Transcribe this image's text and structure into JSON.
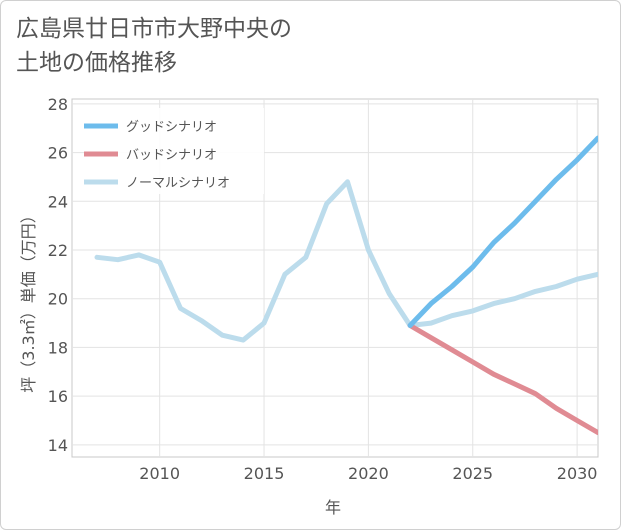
{
  "chart_data": {
    "type": "line",
    "title": [
      "広島県廿日市市大野中央の",
      "土地の価格推移"
    ],
    "xlabel": "年",
    "ylabel": "坪（3.3㎡）単価（万円）",
    "xlim": [
      2005.8,
      2031
    ],
    "ylim": [
      13.5,
      28.2
    ],
    "xticks": [
      2010,
      2015,
      2020,
      2025,
      2030
    ],
    "yticks": [
      14,
      16,
      18,
      20,
      22,
      24,
      26,
      28
    ],
    "legend_position": "top-left",
    "series": [
      {
        "name": "グッドシナリオ",
        "color": "#6dbcec",
        "x": [
          2022,
          2023,
          2024,
          2025,
          2026,
          2027,
          2028,
          2029,
          2030,
          2031
        ],
        "y": [
          18.9,
          19.8,
          20.5,
          21.3,
          22.3,
          23.1,
          24.0,
          24.9,
          25.7,
          26.6
        ]
      },
      {
        "name": "バッドシナリオ",
        "color": "#e08b93",
        "x": [
          2022,
          2023,
          2024,
          2025,
          2026,
          2027,
          2028,
          2029,
          2030,
          2031
        ],
        "y": [
          18.9,
          18.4,
          17.9,
          17.4,
          16.9,
          16.5,
          16.1,
          15.5,
          15.0,
          14.5
        ]
      },
      {
        "name": "ノーマルシナリオ",
        "color": "#bcdcec",
        "x": [
          2007,
          2008,
          2009,
          2010,
          2011,
          2012,
          2013,
          2014,
          2015,
          2016,
          2017,
          2018,
          2019,
          2020,
          2021,
          2022,
          2023,
          2024,
          2025,
          2026,
          2027,
          2028,
          2029,
          2030,
          2031
        ],
        "y": [
          21.7,
          21.6,
          21.8,
          21.5,
          19.6,
          19.1,
          18.5,
          18.3,
          19.0,
          21.0,
          21.7,
          23.9,
          24.8,
          22.0,
          20.2,
          18.9,
          19.0,
          19.3,
          19.5,
          19.8,
          20.0,
          20.3,
          20.5,
          20.8,
          21.0
        ]
      }
    ]
  }
}
